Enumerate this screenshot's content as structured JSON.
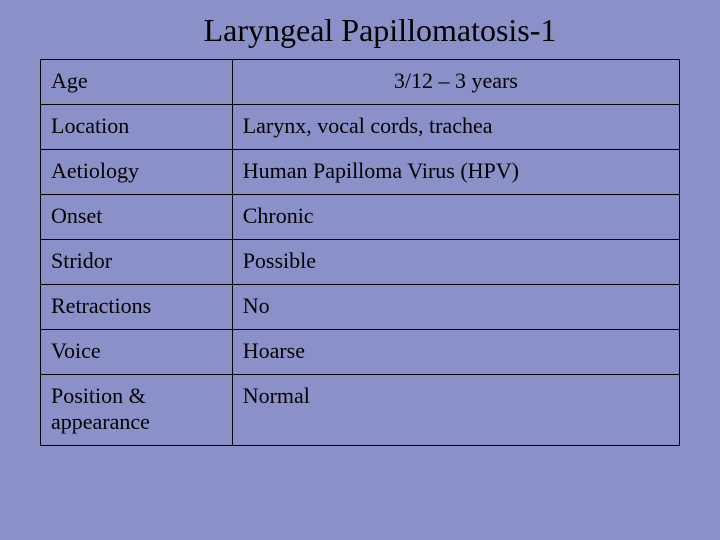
{
  "background_color": "#8a91c8",
  "text_color": "#000000",
  "border_color": "#000000",
  "title": {
    "text": "Laryngeal Papillomatosis-1",
    "fontsize": 32
  },
  "table": {
    "cell_fontsize": 22,
    "rows": [
      {
        "label": "Age",
        "value": "3/12 – 3 years",
        "value_centered": true
      },
      {
        "label": "Location",
        "value": "Larynx, vocal cords, trachea",
        "value_centered": false
      },
      {
        "label": "Aetiology",
        "value": "Human Papilloma Virus (HPV)",
        "value_centered": false
      },
      {
        "label": "Onset",
        "value": "Chronic",
        "value_centered": false
      },
      {
        "label": "Stridor",
        "value": "Possible",
        "value_centered": false
      },
      {
        "label": "Retractions",
        "value": "No",
        "value_centered": false
      },
      {
        "label": "Voice",
        "value": "Hoarse",
        "value_centered": false
      },
      {
        "label": "Position & appearance",
        "value": "Normal",
        "value_centered": false
      }
    ]
  }
}
